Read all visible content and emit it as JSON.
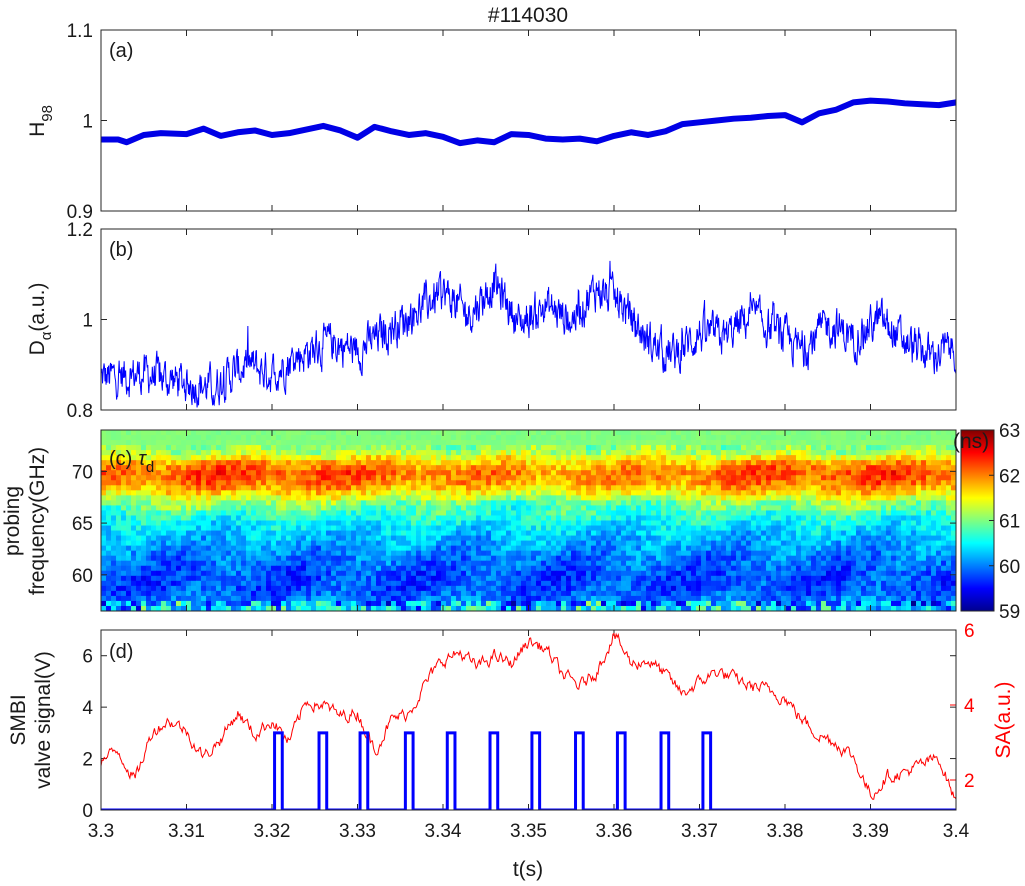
{
  "chart_data": [
    {
      "id": "a",
      "type": "line",
      "title": "#114030",
      "panel_label": "(a)",
      "xlabel": "",
      "ylabel": "H",
      "ylabel_sub": "98",
      "xlim": [
        3.3,
        3.4
      ],
      "ylim": [
        0.9,
        1.1
      ],
      "yticks": [
        "0.9",
        "1",
        "1.1"
      ],
      "grid": false,
      "series": [
        {
          "color": "#0000e6",
          "x": [
            3.3,
            3.302,
            3.303,
            3.305,
            3.307,
            3.31,
            3.312,
            3.314,
            3.316,
            3.318,
            3.32,
            3.322,
            3.324,
            3.326,
            3.328,
            3.33,
            3.332,
            3.334,
            3.336,
            3.338,
            3.34,
            3.342,
            3.344,
            3.346,
            3.348,
            3.35,
            3.352,
            3.354,
            3.356,
            3.358,
            3.36,
            3.362,
            3.364,
            3.366,
            3.368,
            3.37,
            3.372,
            3.374,
            3.376,
            3.378,
            3.38,
            3.382,
            3.384,
            3.386,
            3.388,
            3.39,
            3.392,
            3.394,
            3.396,
            3.398,
            3.4
          ],
          "y": [
            0.979,
            0.979,
            0.976,
            0.984,
            0.986,
            0.985,
            0.991,
            0.983,
            0.987,
            0.989,
            0.984,
            0.986,
            0.99,
            0.994,
            0.989,
            0.981,
            0.993,
            0.988,
            0.984,
            0.986,
            0.982,
            0.975,
            0.978,
            0.976,
            0.985,
            0.984,
            0.98,
            0.979,
            0.98,
            0.977,
            0.983,
            0.987,
            0.984,
            0.988,
            0.996,
            0.998,
            1.0,
            1.002,
            1.003,
            1.005,
            1.006,
            0.998,
            1.008,
            1.012,
            1.02,
            1.022,
            1.021,
            1.019,
            1.018,
            1.017,
            1.02
          ]
        }
      ]
    },
    {
      "id": "b",
      "type": "line",
      "panel_label": "(b)",
      "xlabel": "",
      "ylabel": "D",
      "ylabel_sub": "α",
      "ylabel_unit": "(a.u.)",
      "xlim": [
        3.3,
        3.4
      ],
      "ylim": [
        0.8,
        1.2
      ],
      "yticks": [
        "0.8",
        "1",
        "1.2"
      ],
      "grid": false,
      "series": [
        {
          "color": "#0000ff",
          "x": [
            3.3,
            3.305,
            3.31,
            3.313,
            3.317,
            3.32,
            3.323,
            3.327,
            3.33,
            3.333,
            3.337,
            3.34,
            3.343,
            3.346,
            3.349,
            3.352,
            3.355,
            3.358,
            3.361,
            3.364,
            3.367,
            3.37,
            3.373,
            3.376,
            3.379,
            3.382,
            3.385,
            3.388,
            3.391,
            3.394,
            3.397,
            3.4
          ],
          "y": [
            0.87,
            0.88,
            0.86,
            0.85,
            0.9,
            0.88,
            0.92,
            0.95,
            0.93,
            0.97,
            1.02,
            1.06,
            1.01,
            1.08,
            0.99,
            1.03,
            1.0,
            1.07,
            1.03,
            0.95,
            0.92,
            0.97,
            0.96,
            1.01,
            0.97,
            0.93,
            0.99,
            0.96,
            1.0,
            0.95,
            0.92,
            0.94
          ]
        }
      ]
    },
    {
      "id": "c",
      "type": "heatmap",
      "panel_label": "(c)",
      "series_label": "τ",
      "series_label_sub": "d",
      "xlabel": "",
      "ylabel_lines": [
        "probing",
        "frequency(GHz)"
      ],
      "xlim": [
        3.3,
        3.4
      ],
      "ylim": [
        56.5,
        74
      ],
      "yticks": [
        "60",
        "65",
        "70"
      ],
      "colorbar": {
        "unit": "(ns)",
        "range": [
          59,
          63
        ],
        "ticks": [
          "59",
          "60",
          "61",
          "62",
          "63"
        ],
        "colormap": "jet"
      },
      "profile": {
        "frequency_GHz": [
          56.5,
          57.5,
          58.5,
          60,
          62,
          64,
          65.5,
          67,
          68,
          69,
          70,
          71,
          72,
          73,
          74
        ],
        "tau_d_ns": [
          60.4,
          60.0,
          59.8,
          59.8,
          60.0,
          60.3,
          60.6,
          61.0,
          61.6,
          62.0,
          62.1,
          61.7,
          61.1,
          61.0,
          61.0
        ]
      }
    },
    {
      "id": "d",
      "type": "line",
      "panel_label": "(d)",
      "xlabel": "t(s)",
      "xticks": [
        "3.3",
        "3.31",
        "3.32",
        "3.33",
        "3.34",
        "3.35",
        "3.36",
        "3.37",
        "3.38",
        "3.39",
        "3.4"
      ],
      "xlim": [
        3.3,
        3.4
      ],
      "ylabel_lines": [
        "SMBI",
        "valve signal(V)"
      ],
      "ylim": [
        0,
        7
      ],
      "yticks": [
        "0",
        "2",
        "4",
        "6"
      ],
      "y2label": "SA(a.u.)",
      "y2color": "#ff0000",
      "y2lim": [
        1.2,
        6
      ],
      "y2ticks": [
        "2",
        "4",
        "6"
      ],
      "grid": false,
      "valve_signal": {
        "color": "#0000ff",
        "level": 3,
        "pulse_width": 0.0009,
        "pulse_starts": [
          3.3203,
          3.3255,
          3.3303,
          3.3356,
          3.3405,
          3.3455,
          3.3504,
          3.3555,
          3.3604,
          3.3655,
          3.3704
        ]
      },
      "sa": {
        "color": "#ff0000",
        "x": [
          3.3,
          3.302,
          3.304,
          3.306,
          3.308,
          3.31,
          3.312,
          3.314,
          3.316,
          3.318,
          3.32,
          3.322,
          3.324,
          3.326,
          3.328,
          3.33,
          3.332,
          3.334,
          3.336,
          3.338,
          3.34,
          3.342,
          3.344,
          3.346,
          3.348,
          3.35,
          3.352,
          3.354,
          3.356,
          3.358,
          3.36,
          3.362,
          3.364,
          3.366,
          3.368,
          3.37,
          3.372,
          3.374,
          3.376,
          3.378,
          3.38,
          3.382,
          3.384,
          3.386,
          3.388,
          3.39,
          3.392,
          3.394,
          3.396,
          3.398,
          3.4
        ],
        "y": [
          2.5,
          2.8,
          2.0,
          3.3,
          3.6,
          3.3,
          2.6,
          3.1,
          3.8,
          3.2,
          3.6,
          3.0,
          4.1,
          4.0,
          3.7,
          3.8,
          2.8,
          3.6,
          3.8,
          4.6,
          5.2,
          5.4,
          5.0,
          5.3,
          5.1,
          5.7,
          5.5,
          4.8,
          4.5,
          4.9,
          5.9,
          5.1,
          5.2,
          4.8,
          4.3,
          4.6,
          4.9,
          4.7,
          4.5,
          4.4,
          4.2,
          3.6,
          3.2,
          3.0,
          2.6,
          1.6,
          2.1,
          2.2,
          2.4,
          2.6,
          1.4
        ]
      }
    }
  ]
}
